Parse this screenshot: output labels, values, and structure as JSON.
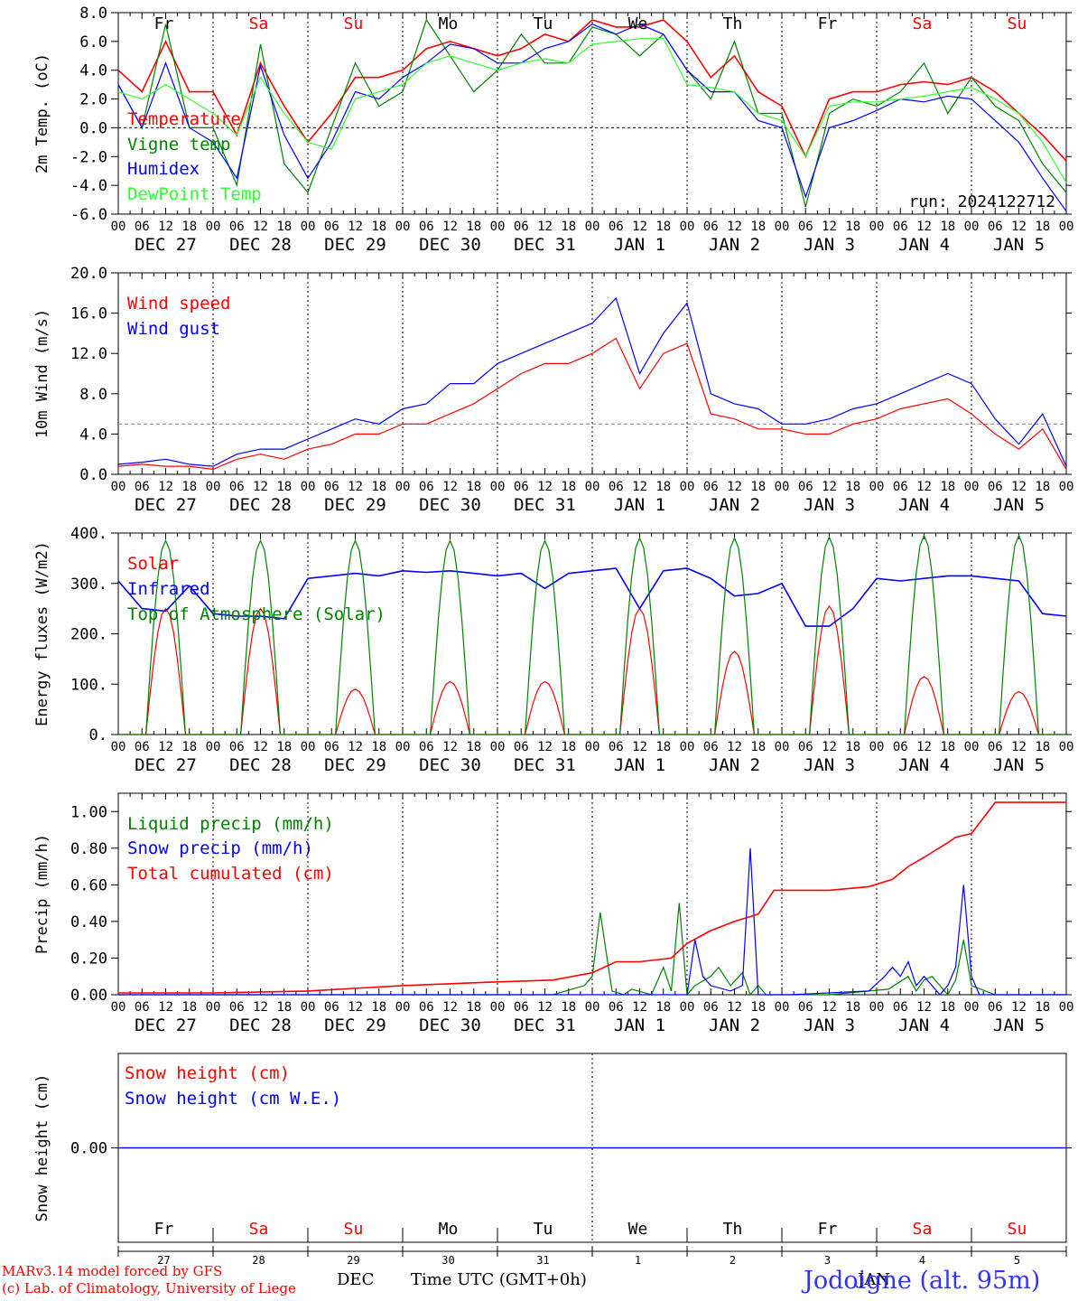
{
  "footer": {
    "model_line": "MARv3.14 model forced by GFS",
    "lab_line": "(c) Lab. of Climatology, University of Liege",
    "month_label": "DEC",
    "month_label2": "JAN",
    "time_axis": "Time UTC (GMT+0h)",
    "station": "Jodoigne (alt. 95m)"
  },
  "colors": {
    "red": "#ff0000",
    "green": "#008000",
    "blue": "#0000ff",
    "lightgreen": "#33ff33",
    "grid": "#808080"
  },
  "days": {
    "weekday": [
      "Fr",
      "Sa",
      "Su",
      "Mo",
      "Tu",
      "We",
      "Th",
      "Fr",
      "Sa",
      "Su"
    ],
    "weekend": [
      false,
      true,
      true,
      false,
      false,
      false,
      false,
      false,
      true,
      true
    ],
    "dates": [
      "DEC 27",
      "DEC 28",
      "DEC 29",
      "DEC 30",
      "DEC 31",
      "JAN  1",
      "JAN  2",
      "JAN  3",
      "JAN  4",
      "JAN  5"
    ],
    "daynum": [
      "27",
      "28",
      "29",
      "30",
      "31",
      "1",
      "2",
      "3",
      "4",
      "5"
    ],
    "hour_ticks": [
      "00",
      "06",
      "12",
      "18"
    ],
    "final_tick": "00"
  },
  "chart_data": [
    {
      "type": "line",
      "ylabel": "2m Temp. (oC)",
      "ylim": [
        -6,
        8
      ],
      "yticks": [
        "-6.0",
        "-4.0",
        "-2.0",
        "0.0",
        "2.0",
        "4.0",
        "6.0",
        "8.0"
      ],
      "annotation": "run: 2024122712",
      "zero_line": 0,
      "series": [
        {
          "name": "Temperature",
          "color": "#ff0000",
          "t": [
            0,
            6,
            12,
            18,
            24,
            30,
            36,
            42,
            48,
            54,
            60,
            66,
            72,
            78,
            84,
            90,
            96,
            102,
            108,
            114,
            120,
            126,
            132,
            138,
            144,
            150,
            156,
            162,
            168,
            174,
            180,
            186,
            192,
            198,
            204,
            210,
            216,
            222,
            228,
            234,
            240
          ],
          "v": [
            4,
            2.5,
            6,
            2.5,
            2.5,
            -0.5,
            4.5,
            1.5,
            -1,
            1,
            3.5,
            3.5,
            4,
            5.5,
            6,
            5.5,
            5,
            5.5,
            6.5,
            6,
            7.5,
            7,
            7,
            7.5,
            6,
            3.5,
            5,
            2.5,
            1.5,
            -2,
            2,
            2.5,
            2.5,
            3,
            3.2,
            3,
            3.5,
            2.5,
            1,
            -0.5,
            -2.3
          ]
        },
        {
          "name": "Vigne temp",
          "color": "#008000",
          "t": [
            0,
            6,
            12,
            18,
            24,
            30,
            36,
            42,
            48,
            54,
            60,
            66,
            72,
            78,
            84,
            90,
            96,
            102,
            108,
            114,
            120,
            126,
            132,
            138,
            144,
            150,
            156,
            162,
            168,
            174,
            180,
            186,
            192,
            198,
            204,
            210,
            216,
            222,
            228,
            234,
            240
          ],
          "v": [
            3,
            0,
            7.2,
            0,
            0,
            -4,
            5.8,
            -2.5,
            -4.5,
            0,
            4.5,
            1.5,
            2.5,
            7.5,
            5,
            2.5,
            4,
            6.5,
            4.5,
            4.5,
            7,
            6.5,
            5,
            6.5,
            4,
            2,
            6,
            1,
            1,
            -5.5,
            1,
            2,
            1.5,
            2.5,
            4.5,
            1,
            3.5,
            1.5,
            0.5,
            -2.5,
            -4.5
          ]
        },
        {
          "name": "Humidex",
          "color": "#0000ff",
          "t": [
            0,
            6,
            12,
            18,
            24,
            30,
            36,
            42,
            48,
            54,
            60,
            66,
            72,
            78,
            84,
            90,
            96,
            102,
            108,
            114,
            120,
            126,
            132,
            138,
            144,
            150,
            156,
            162,
            168,
            174,
            180,
            186,
            192,
            198,
            204,
            210,
            216,
            222,
            228,
            234,
            240
          ],
          "v": [
            3,
            0,
            4.5,
            0,
            -1,
            -3.5,
            4.3,
            -0.5,
            -3.5,
            -1,
            2.5,
            2,
            3.5,
            4.5,
            5.8,
            5.5,
            4.5,
            4.5,
            5.5,
            6,
            7.2,
            6.5,
            7.2,
            6.5,
            4,
            2.5,
            2.5,
            0.5,
            0,
            -4.8,
            0,
            0.5,
            1.2,
            2,
            1.8,
            2.2,
            2,
            0.5,
            -1,
            -3.5,
            -5.8
          ]
        },
        {
          "name": "DewPoint Temp",
          "color": "#33ff33",
          "t": [
            0,
            6,
            12,
            18,
            24,
            30,
            36,
            42,
            48,
            54,
            60,
            66,
            72,
            78,
            84,
            90,
            96,
            102,
            108,
            114,
            120,
            126,
            132,
            138,
            144,
            150,
            156,
            162,
            168,
            174,
            180,
            186,
            192,
            198,
            204,
            210,
            216,
            222,
            228,
            234,
            240
          ],
          "v": [
            2.5,
            2,
            3,
            2,
            1,
            -0.5,
            3.5,
            1,
            -1,
            -1.5,
            2,
            2.5,
            3,
            4.5,
            5,
            4.5,
            4,
            4.5,
            4.8,
            4.5,
            5.8,
            6,
            6.2,
            6.2,
            3,
            2.8,
            2.5,
            1,
            0.5,
            -2,
            1.5,
            1.8,
            1.8,
            2,
            2.2,
            2.5,
            2.8,
            2,
            1,
            -1,
            -3.8
          ]
        }
      ]
    },
    {
      "type": "line",
      "ylabel": "10m Wind (m/s)",
      "ylim": [
        0,
        20
      ],
      "yticks": [
        "0.0",
        "4.0",
        "8.0",
        "12.0",
        "16.0",
        "20.0"
      ],
      "ref_line": 5,
      "series": [
        {
          "name": "Wind speed",
          "color": "#ff0000",
          "t": [
            0,
            6,
            12,
            18,
            24,
            30,
            36,
            42,
            48,
            54,
            60,
            66,
            72,
            78,
            84,
            90,
            96,
            102,
            108,
            114,
            120,
            126,
            132,
            138,
            144,
            150,
            156,
            162,
            168,
            174,
            180,
            186,
            192,
            198,
            204,
            210,
            216,
            222,
            228,
            234,
            240
          ],
          "v": [
            0.8,
            1,
            0.8,
            0.8,
            0.5,
            1.5,
            2,
            1.5,
            2.5,
            3,
            4,
            4,
            5,
            5,
            6,
            7,
            8.5,
            10,
            11,
            11,
            12,
            13.5,
            8.5,
            12,
            13,
            6,
            5.5,
            4.5,
            4.5,
            4,
            4,
            5,
            5.5,
            6.5,
            7,
            7.5,
            6,
            4,
            2.5,
            4.5,
            0.5
          ]
        },
        {
          "name": "Wind gust",
          "color": "#0000ff",
          "t": [
            0,
            6,
            12,
            18,
            24,
            30,
            36,
            42,
            48,
            54,
            60,
            66,
            72,
            78,
            84,
            90,
            96,
            102,
            108,
            114,
            120,
            126,
            132,
            138,
            144,
            150,
            156,
            162,
            168,
            174,
            180,
            186,
            192,
            198,
            204,
            210,
            216,
            222,
            228,
            234,
            240
          ],
          "v": [
            1,
            1.2,
            1.5,
            1,
            0.8,
            2,
            2.5,
            2.5,
            3.5,
            4.5,
            5.5,
            5,
            6.5,
            7,
            9,
            9,
            11,
            12,
            13,
            14,
            15,
            17.5,
            10,
            14,
            17,
            8,
            7,
            6.5,
            5,
            5,
            5.5,
            6.5,
            7,
            8,
            9,
            10,
            9,
            5.5,
            3,
            6,
            0.8
          ]
        }
      ]
    },
    {
      "type": "line",
      "ylabel": "Energy fluxes (W/m2)",
      "ylim": [
        0,
        400
      ],
      "yticks": [
        "0.",
        "100.",
        "200.",
        "300.",
        "400."
      ],
      "series": [
        {
          "name": "Solar",
          "color": "#ff0000",
          "peaks": [
            250,
            250,
            90,
            105,
            105,
            250,
            165,
            255,
            115,
            85
          ]
        },
        {
          "name": "Infrared",
          "color": "#0000ff",
          "t": [
            0,
            6,
            12,
            18,
            24,
            30,
            36,
            42,
            48,
            54,
            60,
            66,
            72,
            78,
            84,
            90,
            96,
            102,
            108,
            114,
            120,
            126,
            132,
            138,
            144,
            150,
            156,
            162,
            168,
            174,
            180,
            186,
            192,
            198,
            204,
            210,
            216,
            222,
            228,
            234,
            240
          ],
          "v": [
            305,
            250,
            245,
            295,
            240,
            235,
            235,
            230,
            310,
            315,
            320,
            315,
            325,
            322,
            325,
            320,
            315,
            320,
            290,
            320,
            325,
            330,
            250,
            325,
            330,
            310,
            275,
            280,
            300,
            215,
            215,
            250,
            310,
            305,
            310,
            315,
            315,
            310,
            305,
            240,
            235
          ]
        },
        {
          "name": "Top of Atmosphere (Solar)",
          "color": "#008000",
          "peaks": [
            385,
            385,
            385,
            385,
            385,
            390,
            390,
            392,
            395,
            395
          ]
        }
      ]
    },
    {
      "type": "line",
      "ylabel": "Precip (mm/h)",
      "ylim": [
        0,
        1.1
      ],
      "yticks": [
        "0.00",
        "0.20",
        "0.40",
        "0.60",
        "0.80",
        "1.00"
      ],
      "series": [
        {
          "name": "Liquid precip (mm/h)",
          "color": "#008000",
          "t": [
            0,
            110,
            118,
            120,
            122,
            125,
            128,
            130,
            135,
            138,
            140,
            142,
            144,
            146,
            150,
            152,
            155,
            158,
            160,
            162,
            164,
            170,
            180,
            190,
            195,
            200,
            202,
            204,
            206,
            210,
            212,
            214,
            216,
            222,
            240
          ],
          "v": [
            0,
            0,
            0.05,
            0.1,
            0.45,
            0.02,
            0.0,
            0.03,
            0.0,
            0.15,
            0.02,
            0.5,
            0.0,
            0.05,
            0.1,
            0.15,
            0.05,
            0.12,
            0.0,
            0.05,
            0.0,
            0.0,
            0.0,
            0.02,
            0.03,
            0.1,
            0.02,
            0.08,
            0.1,
            0.0,
            0.08,
            0.3,
            0.05,
            0.0,
            0.0
          ]
        },
        {
          "name": "Snow precip (mm/h)",
          "color": "#0000ff",
          "t": [
            0,
            140,
            144,
            146,
            148,
            150,
            155,
            158,
            160,
            162,
            164,
            166,
            170,
            190,
            194,
            196,
            198,
            200,
            202,
            204,
            206,
            208,
            210,
            212,
            214,
            216,
            218,
            222,
            240
          ],
          "v": [
            0,
            0,
            0,
            0.3,
            0.1,
            0.05,
            0.02,
            0.05,
            0.8,
            0.0,
            0.0,
            0.0,
            0.0,
            0.02,
            0.1,
            0.15,
            0.1,
            0.18,
            0.05,
            0.1,
            0.05,
            0.0,
            0.05,
            0.15,
            0.6,
            0.1,
            0.0,
            0.0,
            0.0
          ]
        },
        {
          "name": "Total cumulated (cm)",
          "color": "#ff0000",
          "t": [
            0,
            24,
            48,
            72,
            96,
            110,
            120,
            126,
            132,
            140,
            144,
            150,
            156,
            162,
            166,
            170,
            180,
            190,
            196,
            200,
            204,
            210,
            212,
            216,
            222,
            240
          ],
          "v": [
            0.01,
            0.01,
            0.02,
            0.05,
            0.07,
            0.08,
            0.12,
            0.18,
            0.18,
            0.2,
            0.28,
            0.35,
            0.4,
            0.44,
            0.57,
            0.57,
            0.57,
            0.59,
            0.63,
            0.7,
            0.75,
            0.83,
            0.86,
            0.88,
            1.05,
            1.05
          ]
        }
      ]
    },
    {
      "type": "line",
      "ylabel": "Snow height (cm)",
      "ylim": [
        -1,
        1
      ],
      "yticks": [
        "0.00"
      ],
      "series": [
        {
          "name": "Snow height (cm)",
          "color": "#ff0000",
          "t": [
            0,
            240
          ],
          "v": [
            0,
            0
          ]
        },
        {
          "name": "Snow height (cm W.E.)",
          "color": "#0000ff",
          "t": [
            0,
            240
          ],
          "v": [
            0,
            0
          ]
        }
      ]
    }
  ]
}
